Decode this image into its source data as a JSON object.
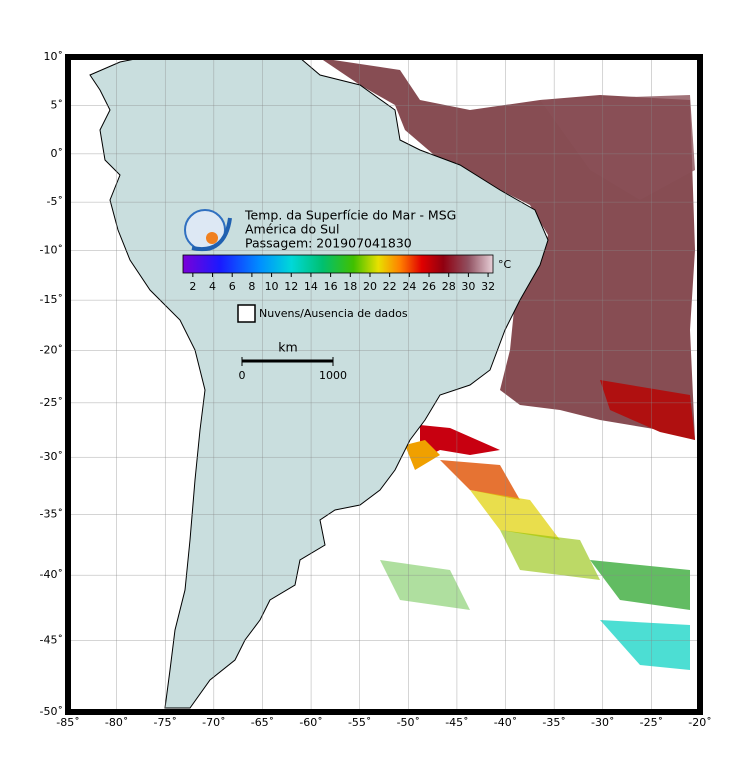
{
  "header": {
    "title": "Temp. da Superfície do Mar - MSG",
    "region": "América do Sul",
    "pass": "Passagem: 201907041830"
  },
  "colorbar": {
    "ticks": [
      2,
      4,
      6,
      8,
      10,
      12,
      14,
      16,
      18,
      20,
      22,
      24,
      26,
      28,
      30,
      32
    ],
    "unit": "°C"
  },
  "legend": {
    "no_data": "Nuvens/Ausencia de dados"
  },
  "scale_bar": {
    "unit": "km",
    "ticks": [
      0,
      1000
    ]
  },
  "map": {
    "lon_ticks": [
      {
        "value": -85,
        "label": "-85˚"
      },
      {
        "value": -80,
        "label": "-80˚"
      },
      {
        "value": -75,
        "label": "-75˚"
      },
      {
        "value": -70,
        "label": "-70˚"
      },
      {
        "value": -65,
        "label": "-65˚"
      },
      {
        "value": -60,
        "label": "-60˚"
      },
      {
        "value": -55,
        "label": "-55˚"
      },
      {
        "value": -50,
        "label": "-50˚"
      },
      {
        "value": -45,
        "label": "-45˚"
      },
      {
        "value": -40,
        "label": "-40˚"
      },
      {
        "value": -35,
        "label": "-35˚"
      },
      {
        "value": -30,
        "label": "-30˚"
      },
      {
        "value": -25,
        "label": "-25˚"
      },
      {
        "value": -20,
        "label": "-20˚"
      }
    ],
    "lat_ticks": [
      {
        "value": 10,
        "label": "10˚"
      },
      {
        "value": 5,
        "label": "5˚"
      },
      {
        "value": 0,
        "label": "0˚"
      },
      {
        "value": -5,
        "label": "-5˚"
      },
      {
        "value": -10,
        "label": "-10˚"
      },
      {
        "value": -15,
        "label": "-15˚"
      },
      {
        "value": -20,
        "label": "-20˚"
      },
      {
        "value": -25,
        "label": "-25˚"
      },
      {
        "value": -30,
        "label": "-30˚"
      },
      {
        "value": -35,
        "label": "-35˚"
      },
      {
        "value": -40,
        "label": "-40˚"
      },
      {
        "value": -45,
        "label": "-45˚"
      },
      {
        "value": -50,
        "label": "-50˚"
      }
    ]
  }
}
